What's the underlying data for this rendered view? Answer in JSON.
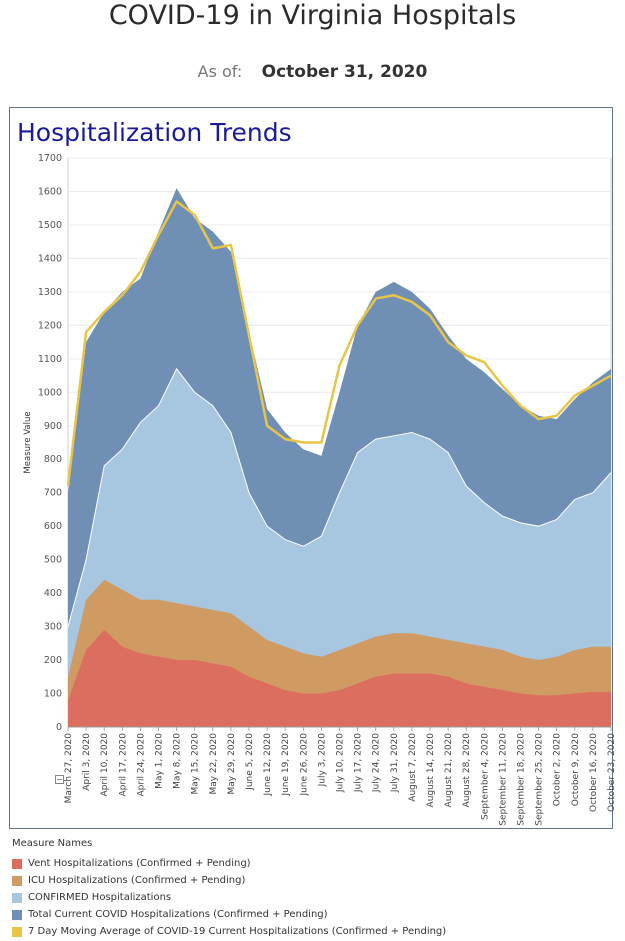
{
  "page": {
    "title": "COVID-19 in Virginia Hospitals",
    "as_of_label": "As of:",
    "as_of_date": "October 31, 2020",
    "collapse_glyph": "−"
  },
  "chart_data": {
    "type": "area",
    "title": "Hospitalization Trends",
    "ylabel": "Measure Value",
    "xlabel": "",
    "ylim": [
      0,
      1700
    ],
    "yticks": [
      0,
      100,
      200,
      300,
      400,
      500,
      600,
      700,
      800,
      900,
      1000,
      1100,
      1200,
      1300,
      1400,
      1500,
      1600,
      1700
    ],
    "grid": true,
    "legend_title": "Measure Names",
    "legend_position": "bottom-left",
    "x_tick_labels": [
      "March 27, 2020",
      "April 3, 2020",
      "April 10, 2020",
      "April 17, 2020",
      "April 24, 2020",
      "May 1, 2020",
      "May 8, 2020",
      "May 15, 2020",
      "May 22, 2020",
      "May 29, 2020",
      "June 5, 2020",
      "June 12, 2020",
      "June 19, 2020",
      "June 26, 2020",
      "July 3, 2020",
      "July 10, 2020",
      "July 17, 2020",
      "July 24, 2020",
      "July 31, 2020",
      "August 7, 2020",
      "August 14, 2020",
      "August 21, 2020",
      "August 28, 2020",
      "September 4, 2020",
      "September 11, 2020",
      "September 18, 2020",
      "September 25, 2020",
      "October 2, 2020",
      "October 9, 2020",
      "October 16, 2020",
      "October 23, 2020"
    ],
    "x_start": "2020-03-26",
    "x_end": "2020-10-30",
    "x_step_days": 7,
    "series": [
      {
        "name": "Total Current COVID Hospitalizations (Confirmed + Pending)",
        "color": "#6f8fb5",
        "values": [
          700,
          1150,
          1240,
          1300,
          1340,
          1480,
          1610,
          1520,
          1480,
          1420,
          1180,
          950,
          880,
          830,
          810,
          1000,
          1200,
          1300,
          1330,
          1300,
          1250,
          1170,
          1100,
          1060,
          1010,
          960,
          930,
          920,
          980,
          1030,
          1070
        ]
      },
      {
        "name": "CONFIRMED Hospitalizations",
        "color": "#a7c6e0",
        "values": [
          300,
          500,
          780,
          830,
          910,
          960,
          1070,
          1000,
          960,
          880,
          700,
          600,
          560,
          540,
          570,
          700,
          820,
          860,
          870,
          880,
          860,
          820,
          720,
          670,
          630,
          610,
          600,
          620,
          680,
          700,
          760
        ]
      },
      {
        "name": "ICU Hospitalizations (Confirmed + Pending)",
        "color": "#d09a63",
        "values": [
          150,
          380,
          440,
          410,
          380,
          380,
          370,
          360,
          350,
          340,
          300,
          260,
          240,
          220,
          210,
          230,
          250,
          270,
          280,
          280,
          270,
          260,
          250,
          240,
          230,
          210,
          200,
          210,
          230,
          240,
          240
        ]
      },
      {
        "name": "Vent Hospitalizations (Confirmed + Pending)",
        "color": "#dc6e5f",
        "values": [
          80,
          230,
          290,
          240,
          220,
          210,
          200,
          200,
          190,
          180,
          150,
          130,
          110,
          100,
          100,
          110,
          130,
          150,
          160,
          160,
          160,
          150,
          130,
          120,
          110,
          100,
          95,
          95,
          100,
          105,
          105
        ]
      },
      {
        "name": "7 Day Moving Average of COVID-19 Current Hospitalizations (Confirmed + Pending)",
        "color": "#e8c547",
        "values": [
          720,
          1180,
          1240,
          1290,
          1360,
          1470,
          1570,
          1530,
          1430,
          1440,
          1170,
          900,
          860,
          850,
          850,
          1080,
          1200,
          1280,
          1290,
          1270,
          1230,
          1150,
          1110,
          1090,
          1020,
          960,
          920,
          930,
          990,
          1020,
          1050
        ]
      }
    ],
    "legend_order": [
      {
        "name": "Vent Hospitalizations (Confirmed + Pending)",
        "color": "#dc6e5f"
      },
      {
        "name": "ICU Hospitalizations (Confirmed + Pending)",
        "color": "#d09a63"
      },
      {
        "name": "CONFIRMED Hospitalizations",
        "color": "#a7c6e0"
      },
      {
        "name": "Total Current COVID Hospitalizations (Confirmed + Pending)",
        "color": "#6f8fb5"
      },
      {
        "name": "7 Day Moving Average of COVID-19 Current Hospitalizations (Confirmed + Pending)",
        "color": "#e8c547"
      }
    ]
  }
}
